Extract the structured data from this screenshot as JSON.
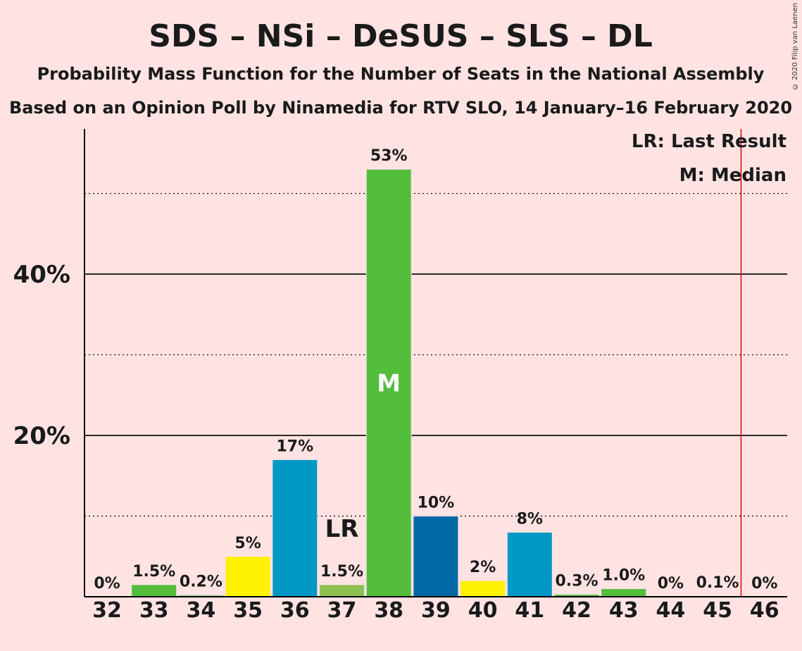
{
  "title": "SDS – NSi – DeSUS – SLS – DL",
  "subtitle": "Probability Mass Function for the Number of Seats in the National Assembly",
  "subtitle2": "Based on an Opinion Poll by Ninamedia for RTV SLO, 14 January–16 February 2020",
  "copyright": "© 2020 Filip van Laenen",
  "legend": {
    "lr": "LR: Last Result",
    "m": "M: Median"
  },
  "colors": {
    "background": "#FFE3E3",
    "majority_line": "#E00000"
  },
  "chart_data": {
    "type": "bar",
    "categories": [
      "32",
      "33",
      "34",
      "35",
      "36",
      "37",
      "38",
      "39",
      "40",
      "41",
      "42",
      "43",
      "44",
      "45",
      "46"
    ],
    "values": [
      0,
      1.5,
      0.2,
      5,
      17,
      1.5,
      53,
      10,
      2,
      8,
      0.3,
      1.0,
      0,
      0.1,
      0
    ],
    "value_labels": [
      "0%",
      "1.5%",
      "0.2%",
      "5%",
      "17%",
      "1.5%",
      "53%",
      "10%",
      "2%",
      "8%",
      "0.3%",
      "1.0%",
      "0%",
      "0.1%",
      "0%"
    ],
    "bar_colors": [
      "#52BE3C",
      "#52BE3C",
      "#52BE3C",
      "#FFF200",
      "#0099C6",
      "#8CC152",
      "#52BE3C",
      "#0069A5",
      "#FFF200",
      "#0099C6",
      "#52BE3C",
      "#52BE3C",
      "#52BE3C",
      "#52BE3C",
      "#52BE3C"
    ],
    "ylim": [
      0,
      58
    ],
    "yticks_major": [
      20,
      40
    ],
    "ytick_labels": [
      "20%",
      "40%"
    ],
    "yticks_minor": [
      10,
      30,
      50
    ],
    "last_result": "37",
    "last_result_label": "LR",
    "median": "38",
    "median_label": "M",
    "majority_after": "45"
  }
}
